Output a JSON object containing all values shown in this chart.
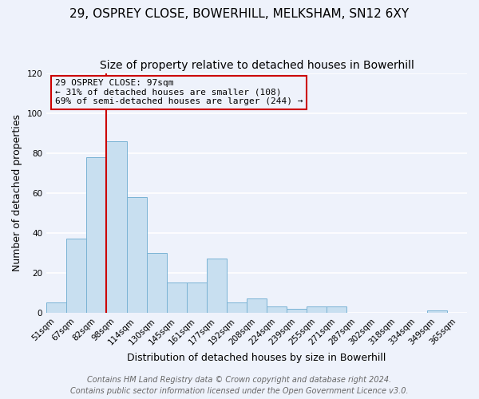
{
  "title": "29, OSPREY CLOSE, BOWERHILL, MELKSHAM, SN12 6XY",
  "subtitle": "Size of property relative to detached houses in Bowerhill",
  "xlabel": "Distribution of detached houses by size in Bowerhill",
  "ylabel": "Number of detached properties",
  "bin_labels": [
    "51sqm",
    "67sqm",
    "82sqm",
    "98sqm",
    "114sqm",
    "130sqm",
    "145sqm",
    "161sqm",
    "177sqm",
    "192sqm",
    "208sqm",
    "224sqm",
    "239sqm",
    "255sqm",
    "271sqm",
    "287sqm",
    "302sqm",
    "318sqm",
    "334sqm",
    "349sqm",
    "365sqm"
  ],
  "bar_heights": [
    5,
    37,
    78,
    86,
    58,
    30,
    15,
    15,
    27,
    5,
    7,
    3,
    2,
    3,
    3,
    0,
    0,
    0,
    0,
    1,
    0
  ],
  "bar_color": "#c8dff0",
  "bar_edge_color": "#7ab3d4",
  "ylim": [
    0,
    120
  ],
  "yticks": [
    0,
    20,
    40,
    60,
    80,
    100,
    120
  ],
  "vline_x_index": 3,
  "vline_color": "#cc0000",
  "annotation_title": "29 OSPREY CLOSE: 97sqm",
  "annotation_line1": "← 31% of detached houses are smaller (108)",
  "annotation_line2": "69% of semi-detached houses are larger (244) →",
  "annotation_box_color": "#cc0000",
  "footer_line1": "Contains HM Land Registry data © Crown copyright and database right 2024.",
  "footer_line2": "Contains public sector information licensed under the Open Government Licence v3.0.",
  "background_color": "#eef2fb",
  "grid_color": "#ffffff",
  "title_fontsize": 11,
  "subtitle_fontsize": 10,
  "axis_label_fontsize": 9,
  "tick_fontsize": 7.5,
  "footer_fontsize": 7,
  "annotation_fontsize": 8
}
